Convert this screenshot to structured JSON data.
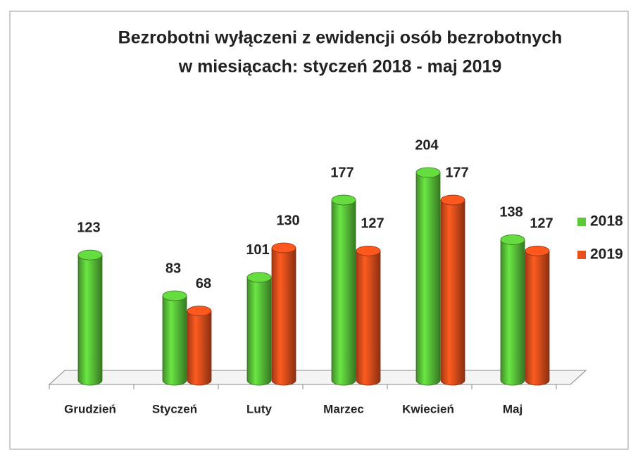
{
  "chart_data": {
    "type": "bar3d",
    "title": [
      "Bezrobotni wyłączeni z ewidencji osób bezrobotnych",
      "w miesiącach: styczeń 2018 - maj 2019"
    ],
    "categories": [
      "Grudzień",
      "Styczeń",
      "Luty",
      "Marzec",
      "Kwiecień",
      "Maj"
    ],
    "series": [
      {
        "name": "2018",
        "color": "#5cc83a",
        "values": [
          123,
          83,
          101,
          177,
          204,
          138
        ]
      },
      {
        "name": "2019",
        "color": "#e8501c",
        "values": [
          null,
          68,
          130,
          127,
          177,
          127
        ]
      }
    ],
    "legend": "right"
  }
}
